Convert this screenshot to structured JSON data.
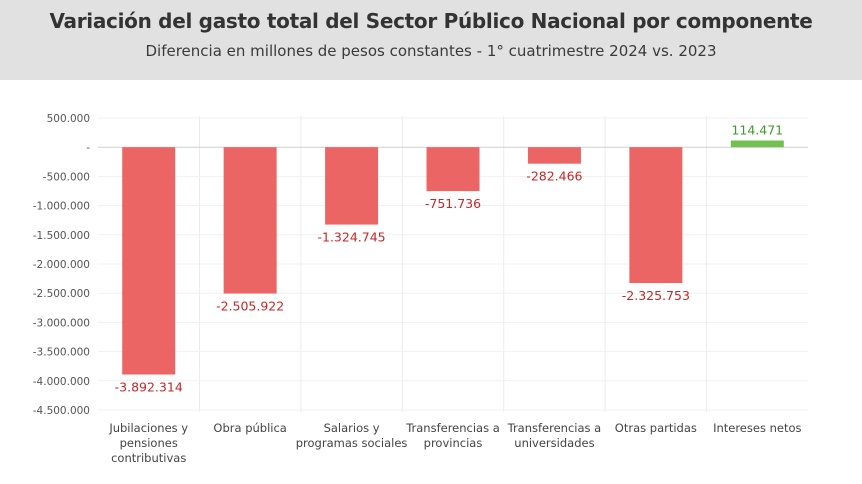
{
  "header": {
    "title": "Variación del gasto total del Sector Público Nacional por componente",
    "subtitle": "Diferencia en millones de pesos constantes - 1° cuatrimestre 2024 vs. 2023"
  },
  "colors": {
    "negative": "#ec6565",
    "positive": "#72c04f",
    "negative_label": "#c62828",
    "positive_label": "#3e9a2c",
    "header_bg": "#e1e1e1"
  },
  "chart_data": {
    "type": "bar",
    "title": "Variación del gasto total del Sector Público Nacional por componente",
    "subtitle": "Diferencia en millones de pesos constantes - 1° cuatrimestre 2024 vs. 2023",
    "categories": [
      [
        "Jubilaciones y",
        "pensiones",
        "contributivas"
      ],
      [
        "Obra pública"
      ],
      [
        "Salarios y",
        "programas sociales"
      ],
      [
        "Transferencias a",
        "provincias"
      ],
      [
        "Transferencias a",
        "universidades"
      ],
      [
        "Otras partidas"
      ],
      [
        "Intereses netos"
      ]
    ],
    "values": [
      -3892314,
      -2505922,
      -1324745,
      -751736,
      -282466,
      -2325753,
      114471
    ],
    "value_labels": [
      "-3.892.314",
      "-2.505.922",
      "-1.324.745",
      "-751.736",
      "-282.466",
      "-2.325.753",
      "114.471"
    ],
    "ylim": [
      -4500000,
      500000
    ],
    "yticks": [
      500000,
      0,
      -500000,
      -1000000,
      -1500000,
      -2000000,
      -2500000,
      -3000000,
      -3500000,
      -4000000,
      -4500000
    ],
    "ytick_labels": [
      "500.000",
      "-",
      "-500.000",
      "-1.000.000",
      "-1.500.000",
      "-2.000.000",
      "-2.500.000",
      "-3.000.000",
      "-3.500.000",
      "-4.000.000",
      "-4.500.000"
    ],
    "grid": true
  }
}
